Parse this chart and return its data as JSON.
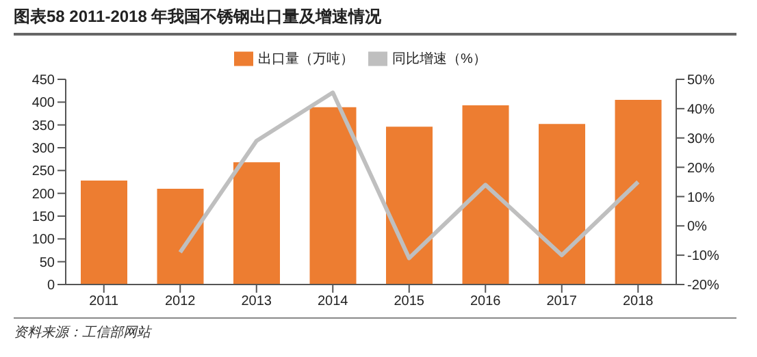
{
  "chart_data": {
    "type": "bar",
    "title": "图表58    2011-2018 年我国不锈钢出口量及增速情况",
    "categories": [
      "2011",
      "2012",
      "2013",
      "2014",
      "2015",
      "2016",
      "2017",
      "2018"
    ],
    "series": [
      {
        "name": "出口量（万吨）",
        "color": "#ed7d31",
        "values": [
          228,
          210,
          268,
          389,
          346,
          393,
          352,
          405
        ]
      },
      {
        "name": "同比增速（%）",
        "type": "line",
        "axis": "y2",
        "color": "#bfbfbf",
        "values": [
          null,
          -9,
          29,
          45.5,
          -11,
          14,
          -10,
          15
        ]
      }
    ],
    "ylim": [
      0,
      450
    ],
    "yticks": [
      0,
      50,
      100,
      150,
      200,
      250,
      300,
      350,
      400,
      450
    ],
    "y2lim": [
      -20,
      50
    ],
    "y2ticks": [
      {
        "value": -20,
        "label": "-20%"
      },
      {
        "value": -10,
        "label": "-10%"
      },
      {
        "value": 0,
        "label": "0%"
      },
      {
        "value": 10,
        "label": "10%"
      },
      {
        "value": 20,
        "label": "20%"
      },
      {
        "value": 30,
        "label": "30%"
      },
      {
        "value": 40,
        "label": "40%"
      },
      {
        "value": 50,
        "label": "50%"
      }
    ],
    "grid": false,
    "legend": "top",
    "marker": "none",
    "annotations": [
      "资料来源：工信部网站"
    ]
  }
}
